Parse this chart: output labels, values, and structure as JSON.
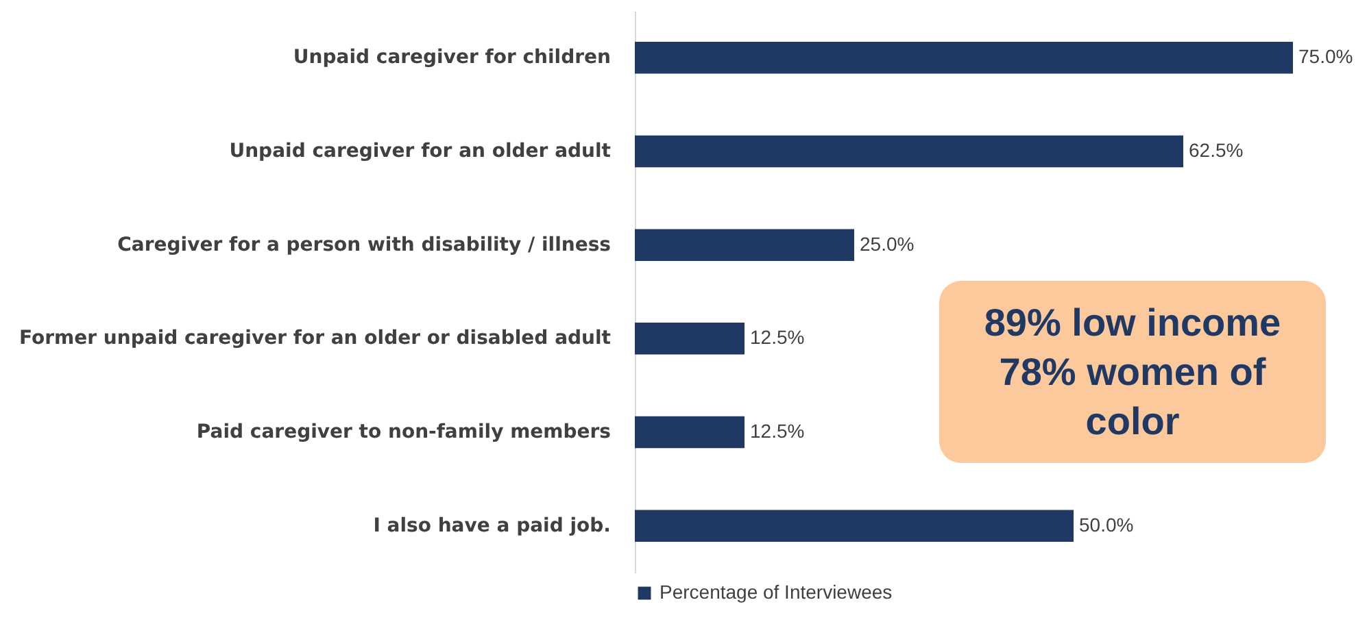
{
  "chart_data": {
    "type": "bar",
    "orientation": "horizontal",
    "categories": [
      "Unpaid caregiver for children",
      "Unpaid caregiver for an older adult",
      "Caregiver for a person with disability / illness",
      "Former unpaid caregiver for an older or disabled adult",
      "Paid caregiver to non-family members",
      "I also have a paid job."
    ],
    "series": [
      {
        "name": "Percentage of Interviewees",
        "color": "#203864",
        "values": [
          75,
          62.5,
          25,
          12.5,
          12.5,
          50
        ],
        "value_labels": [
          "75.0%",
          "62.5%",
          "25.0%",
          "12.5%",
          "12.5%",
          "50.0%"
        ]
      }
    ],
    "annotations": [
      "89% low income 78% women of color"
    ],
    "legend": "bottom"
  }
}
